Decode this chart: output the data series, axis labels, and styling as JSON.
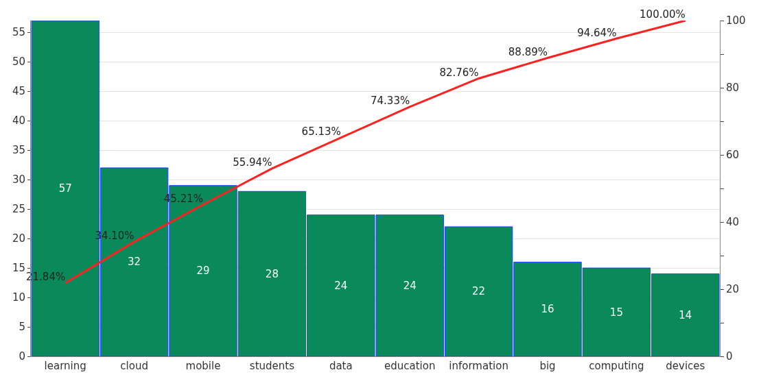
{
  "chart_data": {
    "type": "bar",
    "categories": [
      "learning",
      "cloud",
      "mobile",
      "students",
      "data",
      "education",
      "information",
      "big",
      "computing",
      "devices"
    ],
    "series": [
      {
        "color": "#0a8a5a",
        "values": [
          57,
          32,
          29,
          28,
          24,
          24,
          22,
          16,
          15,
          14
        ],
        "data_labels": true
      },
      {
        "type": "line",
        "axis": "y2",
        "color": "#ff2020",
        "values": [
          21.84,
          34.1,
          45.21,
          55.94,
          65.13,
          74.33,
          82.76,
          88.89,
          94.64,
          100
        ],
        "value_labels": [
          "21.84%",
          "34.10%",
          "45.21%",
          "55.94%",
          "65.13%",
          "74.33%",
          "82.76%",
          "88.89%",
          "94.64%",
          "100.00%"
        ]
      }
    ],
    "ylim": [
      0,
      57
    ],
    "yticks": [
      0,
      5,
      10,
      15,
      20,
      25,
      30,
      35,
      40,
      45,
      50,
      55
    ],
    "y2lim": [
      0,
      100
    ],
    "y2ticks": [
      0,
      {
        "value": 10,
        "label": null
      },
      20,
      {
        "value": 30,
        "label": null
      },
      40,
      {
        "value": 50,
        "label": null
      },
      60,
      {
        "value": 70,
        "label": null
      },
      80,
      {
        "value": 90,
        "label": null
      },
      100
    ],
    "grid": "y",
    "legend": false,
    "marker": "none",
    "line_style": "solid"
  }
}
